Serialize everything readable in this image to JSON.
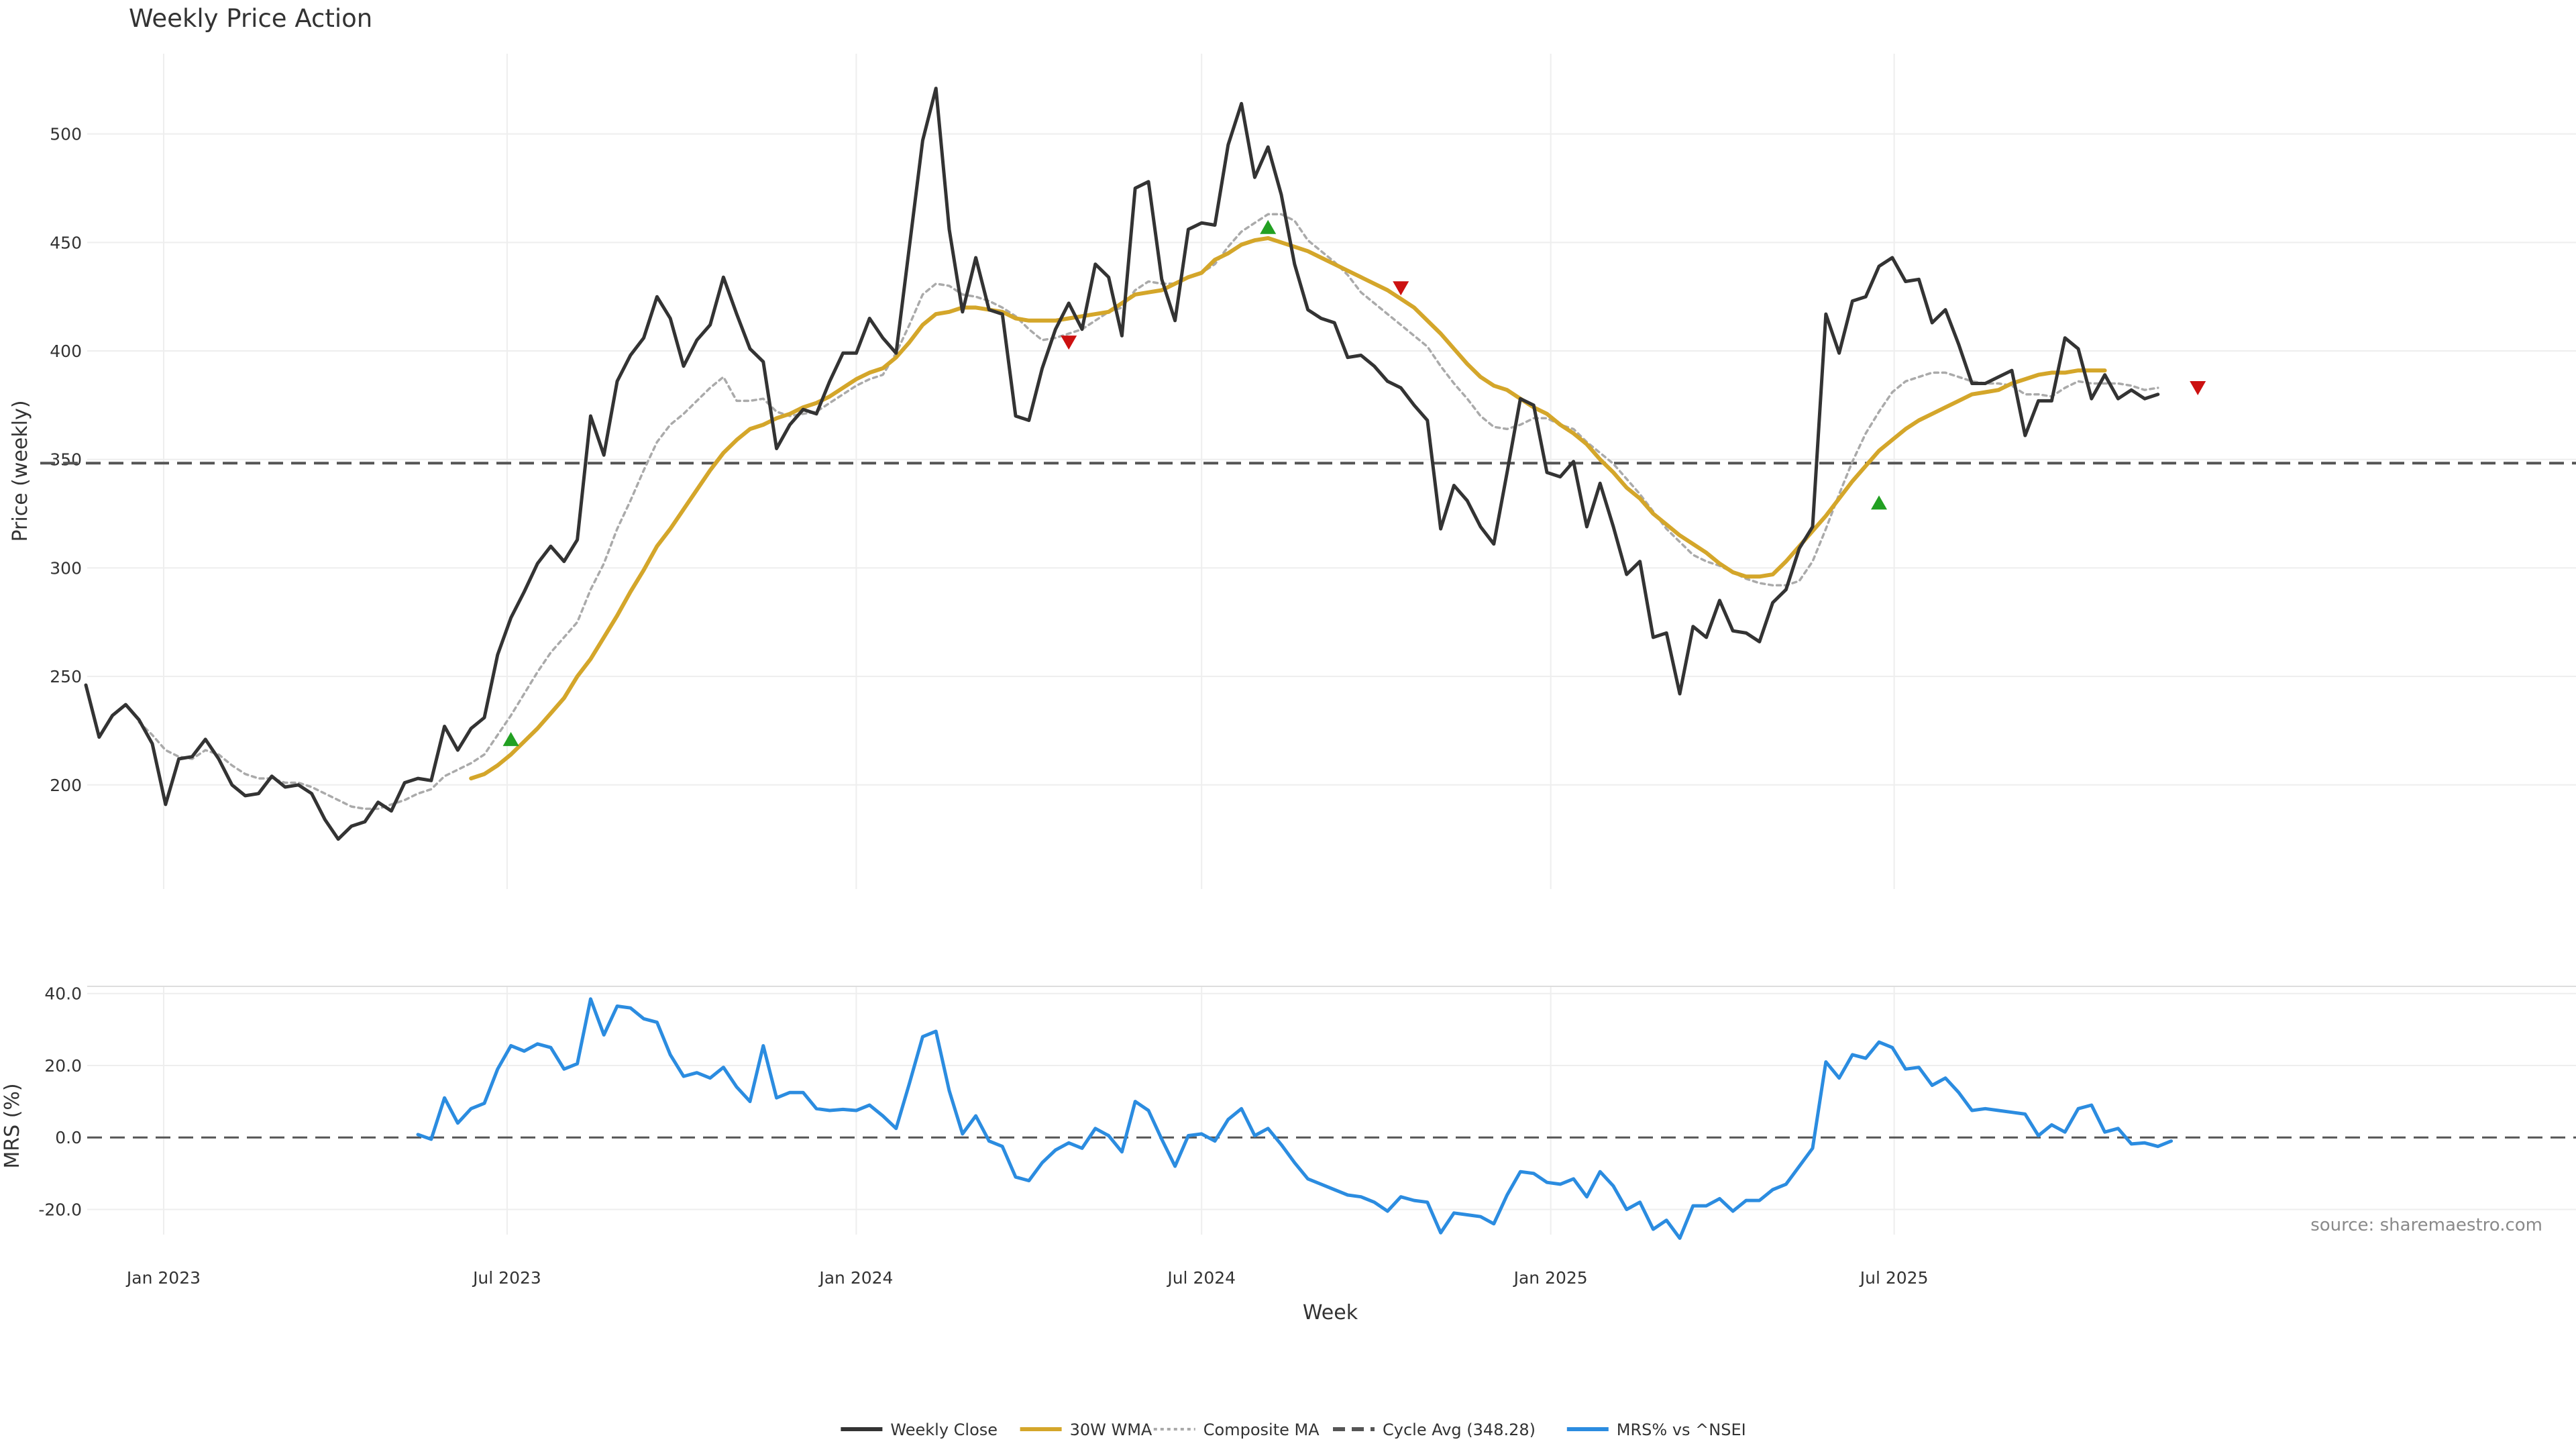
{
  "chart_data": [
    {
      "panel": "price",
      "type": "line",
      "title": "Weekly Price Action",
      "xlabel": "",
      "ylabel": "Price (weekly)",
      "ylim": [
        152,
        537
      ],
      "yticks": [
        200,
        250,
        300,
        350,
        400,
        450,
        500
      ],
      "grid": true,
      "x_start": "2022-11-21",
      "x_step_weeks": 1,
      "xticks": [
        {
          "date": "2023-01-01",
          "label": "Jan 2023"
        },
        {
          "date": "2023-07-01",
          "label": "Jul 2023"
        },
        {
          "date": "2024-01-01",
          "label": "Jan 2024"
        },
        {
          "date": "2024-07-01",
          "label": "Jul 2024"
        },
        {
          "date": "2025-01-01",
          "label": "Jan 2025"
        },
        {
          "date": "2025-07-01",
          "label": "Jul 2025"
        }
      ],
      "series": [
        {
          "name": "Weekly Close",
          "color": "#333333",
          "style": "solid",
          "values": [
            246,
            222,
            232,
            237,
            230,
            219,
            191,
            212,
            213,
            221,
            212,
            200,
            195,
            196,
            204,
            199,
            200,
            196,
            184,
            175,
            181,
            183,
            192,
            188,
            201,
            203,
            202,
            227,
            216,
            226,
            231,
            260,
            277,
            289,
            302,
            310,
            303,
            313,
            370,
            352,
            386,
            398,
            406,
            425,
            415,
            393,
            405,
            412,
            434,
            417,
            401,
            395,
            355,
            366,
            373,
            371,
            386,
            399,
            399,
            415,
            406,
            399,
            448,
            497,
            521,
            456,
            418,
            443,
            419,
            417,
            370,
            368,
            392,
            410,
            422,
            410,
            440,
            434,
            407,
            475,
            478,
            433,
            414,
            456,
            459,
            458,
            495,
            514,
            480,
            494,
            472,
            440,
            419,
            415,
            413,
            397,
            398,
            393,
            386,
            383,
            375,
            368,
            318,
            338,
            331,
            319,
            311,
            344,
            378,
            375,
            344,
            342,
            349,
            319,
            339,
            319,
            297,
            303,
            268,
            270,
            242,
            273,
            268,
            285,
            271,
            270,
            266,
            284,
            290,
            309,
            319,
            417,
            399,
            423,
            425,
            439,
            443,
            432,
            433,
            413,
            419,
            403,
            385,
            385,
            388,
            391,
            361,
            377,
            377,
            406,
            401,
            378,
            389,
            378,
            382,
            378,
            380
          ]
        },
        {
          "name": "30W WMA",
          "color": "#d4a62a",
          "style": "solid",
          "start_index": 29,
          "values": [
            203,
            205,
            209,
            214,
            220,
            226,
            233,
            240,
            250,
            258,
            268,
            278,
            289,
            299,
            310,
            318,
            327,
            336,
            345,
            353,
            359,
            364,
            366,
            369,
            371,
            374,
            376,
            379,
            383,
            387,
            390,
            392,
            397,
            404,
            412,
            417,
            418,
            420,
            420,
            419,
            418,
            415,
            414,
            414,
            414,
            415,
            416,
            417,
            418,
            422,
            426,
            427,
            428,
            431,
            434,
            436,
            442,
            445,
            449,
            451,
            452,
            450,
            448,
            446,
            443,
            440,
            437,
            434,
            431,
            428,
            424,
            420,
            414,
            408,
            401,
            394,
            388,
            384,
            382,
            378,
            374,
            371,
            366,
            362,
            357,
            350,
            344,
            337,
            332,
            325,
            320,
            315,
            311,
            307,
            302,
            298,
            296,
            296,
            297,
            303,
            310,
            317,
            324,
            332,
            340,
            347,
            354,
            359,
            364,
            368,
            371,
            374,
            377,
            380,
            381,
            382,
            385,
            387,
            389,
            390,
            390,
            391,
            391,
            391
          ]
        },
        {
          "name": "Composite MA",
          "color": "#aaaaaa",
          "style": "dotted",
          "values": [
            null,
            null,
            null,
            null,
            229,
            223,
            216,
            213,
            212,
            216,
            214,
            209,
            205,
            203,
            203,
            201,
            201,
            199,
            196,
            193,
            190,
            189,
            189,
            191,
            193,
            196,
            198,
            204,
            207,
            210,
            214,
            223,
            232,
            242,
            252,
            261,
            268,
            275,
            290,
            302,
            318,
            331,
            345,
            358,
            366,
            371,
            377,
            383,
            388,
            377,
            377,
            378,
            372,
            370,
            371,
            372,
            376,
            380,
            384,
            387,
            389,
            399,
            412,
            426,
            431,
            430,
            426,
            425,
            423,
            420,
            416,
            410,
            405,
            406,
            408,
            410,
            414,
            418,
            420,
            428,
            432,
            431,
            431,
            434,
            436,
            440,
            448,
            455,
            459,
            463,
            463,
            460,
            451,
            446,
            441,
            435,
            427,
            422,
            417,
            412,
            407,
            402,
            393,
            385,
            378,
            370,
            365,
            364,
            366,
            369,
            369,
            366,
            364,
            358,
            353,
            348,
            341,
            334,
            326,
            318,
            312,
            306,
            303,
            301,
            298,
            295,
            293,
            292,
            292,
            294,
            303,
            318,
            334,
            349,
            362,
            372,
            381,
            386,
            388,
            390,
            390,
            388,
            386,
            385,
            385,
            384,
            380,
            380,
            379,
            383,
            386,
            385,
            385,
            385,
            384,
            382,
            383
          ]
        },
        {
          "name": "Cycle Avg (348.28)",
          "color": "#555555",
          "style": "dashed",
          "constant": 348.28
        }
      ],
      "signals": [
        {
          "type": "buy",
          "index": 32,
          "value": 221
        },
        {
          "type": "sell",
          "index": 74,
          "value": 404
        },
        {
          "type": "buy",
          "index": 89,
          "value": 457
        },
        {
          "type": "sell",
          "index": 99,
          "value": 429
        },
        {
          "type": "buy",
          "index": 135,
          "value": 330
        },
        {
          "type": "sell",
          "index": 159,
          "value": 383
        }
      ]
    },
    {
      "panel": "mrs",
      "type": "line",
      "xlabel": "Week",
      "ylabel": "MRS (%)",
      "ylim": [
        -27,
        42
      ],
      "yticks": [
        -20,
        0,
        20,
        40
      ],
      "ytick_labels": [
        "-20.0",
        "0.0",
        "20.0",
        "40.0"
      ],
      "grid": true,
      "zero_line": true,
      "series": [
        {
          "name": "MRS% vs ^NSEI",
          "color": "#2b8ce0",
          "style": "solid",
          "start_index": 25,
          "values": [
            0.8,
            -0.5,
            11.0,
            4.0,
            8.0,
            9.5,
            19.0,
            25.5,
            24.0,
            26.0,
            25.0,
            19.0,
            20.5,
            38.5,
            28.5,
            36.5,
            36.0,
            33.0,
            32.0,
            23.0,
            17.0,
            18.0,
            16.5,
            19.5,
            14.0,
            10.0,
            25.5,
            11.0,
            12.5,
            12.5,
            8.0,
            7.5,
            7.8,
            7.5,
            9.0,
            6.0,
            2.5,
            15.0,
            28.0,
            29.5,
            13.0,
            1.0,
            6.0,
            -1.0,
            -2.5,
            -11.0,
            -12.0,
            -7.0,
            -3.5,
            -1.5,
            -3.0,
            2.5,
            0.5,
            -4.0,
            10.0,
            7.5,
            -0.5,
            -8.0,
            0.5,
            1.0,
            -1.0,
            5.0,
            8.0,
            0.5,
            2.5,
            -2.0,
            -7.0,
            -11.5,
            -13.0,
            -14.5,
            -16.0,
            -16.5,
            -18.0,
            -20.5,
            -16.5,
            -17.5,
            -18.0,
            -26.5,
            -21.0,
            -21.5,
            -22.0,
            -24.0,
            -16.0,
            -9.5,
            -10.0,
            -12.5,
            -13.0,
            -11.5,
            -16.5,
            -9.5,
            -13.5,
            -20.0,
            -18.0,
            -25.5,
            -23.0,
            -28.0,
            -19.0,
            -19.0,
            -17.0,
            -20.5,
            -17.5,
            -17.5,
            -14.5,
            -13.0,
            -8.0,
            -3.0,
            21.0,
            16.5,
            23.0,
            22.0,
            26.5,
            25.0,
            19.0,
            19.5,
            14.5,
            16.5,
            12.5,
            7.5,
            8.0,
            7.5,
            7.0,
            6.5,
            0.5,
            3.5,
            1.5,
            8.0,
            9.0,
            1.5,
            2.5,
            -1.8,
            -1.5,
            -2.5,
            -1.0
          ]
        }
      ]
    }
  ],
  "source_note": "source: sharemaestro.com",
  "legend": [
    {
      "label": "Weekly Close",
      "color": "#333333",
      "style": "solid"
    },
    {
      "label": "30W WMA",
      "color": "#d4a62a",
      "style": "solid"
    },
    {
      "label": "Composite MA",
      "color": "#aaaaaa",
      "style": "dotted"
    },
    {
      "label": "Cycle Avg (348.28)",
      "color": "#555555",
      "style": "dashed"
    },
    {
      "label": "MRS% vs ^NSEI",
      "color": "#2b8ce0",
      "style": "solid"
    }
  ],
  "colors": {
    "buy_marker": "#22a022",
    "sell_marker": "#cc1111",
    "grid": "#eeeeee"
  }
}
